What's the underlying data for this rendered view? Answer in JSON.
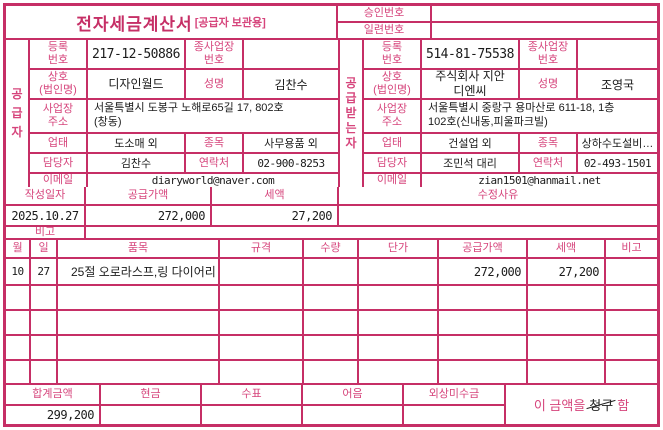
{
  "colors": {
    "accent": "#c62f66",
    "label_text": "#d6457c",
    "value_text": "#1b1b1b",
    "claim_mark": "#222222"
  },
  "title": {
    "main": "전자세금계산서",
    "sub": "[공급자 보관용]"
  },
  "top": {
    "approval_label": "승인번호",
    "approval_value": "",
    "serial_label": "일련번호",
    "serial_value": ""
  },
  "party_labels": {
    "reg_no": "등록\n번호",
    "sub_biz_no": "종사업장\n번호",
    "company": "상호\n(법인명)",
    "ceo": "성명",
    "address": "사업장\n주소",
    "biz_type": "업태",
    "biz_item": "종목",
    "manager": "담당자",
    "phone": "연락처",
    "email": "이메일"
  },
  "supplier": {
    "side_label": "공\n급\n자",
    "reg_no": "217-12-50886",
    "sub_biz_no": "",
    "company": "디자인월드",
    "ceo": "김찬수",
    "address": "서울특별시 도봉구 노해로65길 17, 802호\n(창동)",
    "biz_type": "도소매 외",
    "biz_item": "사무용품 외",
    "manager": "김찬수",
    "phone": "02-900-8253",
    "email": "diaryworld@naver.com"
  },
  "buyer": {
    "side_label": "공\n급\n받\n는\n자",
    "reg_no": "514-81-75538",
    "sub_biz_no": "",
    "company": "주식회사 지안\n디엔씨",
    "ceo": "조영국",
    "address": "서울특별시 중랑구 용마산로 611-18, 1층\n102호(신내동,피울파크빌)",
    "biz_type": "건설업 외",
    "biz_item": "상하수도설비…",
    "manager": "조민석 대리",
    "phone": "02-493-1501",
    "email": "zian1501@hanmail.net"
  },
  "summary": {
    "date_label": "작성일자",
    "date": "2025.10.27",
    "supply_label": "공급가액",
    "supply_value": "272,000",
    "tax_label": "세액",
    "tax_value": "27,200",
    "reason_label": "수정사유",
    "reason_value": "",
    "remarks_label": "비고",
    "remarks_value": ""
  },
  "items": {
    "headers": {
      "month": "월",
      "day": "일",
      "name": "품목",
      "spec": "규격",
      "qty": "수량",
      "unit_price": "단가",
      "supply": "공급가액",
      "tax": "세액",
      "note": "비고"
    },
    "rows": [
      {
        "month": "10",
        "day": "27",
        "name": "25절 오로라스프,링 다이어리",
        "spec": "",
        "qty": "",
        "unit_price": "",
        "supply": "272,000",
        "tax": "27,200",
        "note": ""
      },
      {
        "month": "",
        "day": "",
        "name": "",
        "spec": "",
        "qty": "",
        "unit_price": "",
        "supply": "",
        "tax": "",
        "note": ""
      },
      {
        "month": "",
        "day": "",
        "name": "",
        "spec": "",
        "qty": "",
        "unit_price": "",
        "supply": "",
        "tax": "",
        "note": ""
      },
      {
        "month": "",
        "day": "",
        "name": "",
        "spec": "",
        "qty": "",
        "unit_price": "",
        "supply": "",
        "tax": "",
        "note": ""
      },
      {
        "month": "",
        "day": "",
        "name": "",
        "spec": "",
        "qty": "",
        "unit_price": "",
        "supply": "",
        "tax": "",
        "note": ""
      }
    ]
  },
  "totals": {
    "total_label": "합계금액",
    "total_value": "299,200",
    "cash_label": "현금",
    "cash_value": "",
    "check_label": "수표",
    "check_value": "",
    "bill_label": "어음",
    "bill_value": "",
    "credit_label": "외상미수금",
    "credit_value": "",
    "claim_prefix": "이 금액을",
    "claim_word": "청구",
    "claim_suffix": "함"
  }
}
